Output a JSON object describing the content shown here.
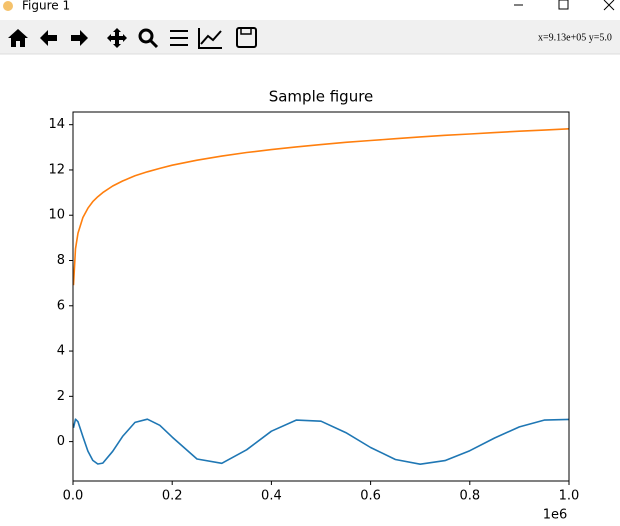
{
  "window": {
    "title": "Figure 1"
  },
  "toolbar": {
    "status": "x=9.13e+05 y=5.0"
  },
  "chart_data": {
    "type": "line",
    "title": "Sample figure",
    "x": [
      1000,
      5000,
      10000,
      20000,
      30000,
      40000,
      50000,
      60000,
      80000,
      100000,
      125000,
      150000,
      175000,
      200000,
      250000,
      300000,
      350000,
      400000,
      450000,
      500000,
      550000,
      600000,
      650000,
      700000,
      750000,
      800000,
      850000,
      900000,
      950000,
      1000000
    ],
    "series": [
      {
        "color": "#1f77b4",
        "values": [
          0.61,
          0.99,
          0.88,
          0.22,
          -0.42,
          -0.83,
          -0.99,
          -0.95,
          -0.43,
          0.23,
          0.85,
          0.99,
          0.72,
          0.2,
          -0.77,
          -0.96,
          -0.36,
          0.46,
          0.95,
          0.9,
          0.4,
          -0.26,
          -0.79,
          -1.0,
          -0.84,
          -0.4,
          0.16,
          0.65,
          0.95,
          0.98
        ]
      },
      {
        "color": "#ff7f0e",
        "values": [
          6.91,
          8.52,
          9.21,
          9.9,
          10.31,
          10.6,
          10.82,
          11.0,
          11.29,
          11.51,
          11.74,
          11.92,
          12.07,
          12.21,
          12.43,
          12.61,
          12.77,
          12.9,
          13.02,
          13.12,
          13.22,
          13.3,
          13.38,
          13.46,
          13.53,
          13.59,
          13.65,
          13.71,
          13.76,
          13.82
        ]
      }
    ],
    "xlim": [
      0,
      1000000
    ],
    "xticks": [
      {
        "value": 0,
        "label": "0.0"
      },
      {
        "value": 200000,
        "label": "0.2"
      },
      {
        "value": 400000,
        "label": "0.4"
      },
      {
        "value": 600000,
        "label": "0.6"
      },
      {
        "value": 800000,
        "label": "0.8"
      },
      {
        "value": 1000000,
        "label": "1.0"
      }
    ],
    "x_offset_label": "1e6",
    "ylim": [
      -1.74,
      14.56
    ],
    "yticks": [
      0,
      2,
      4,
      6,
      8,
      10,
      12,
      14
    ]
  }
}
